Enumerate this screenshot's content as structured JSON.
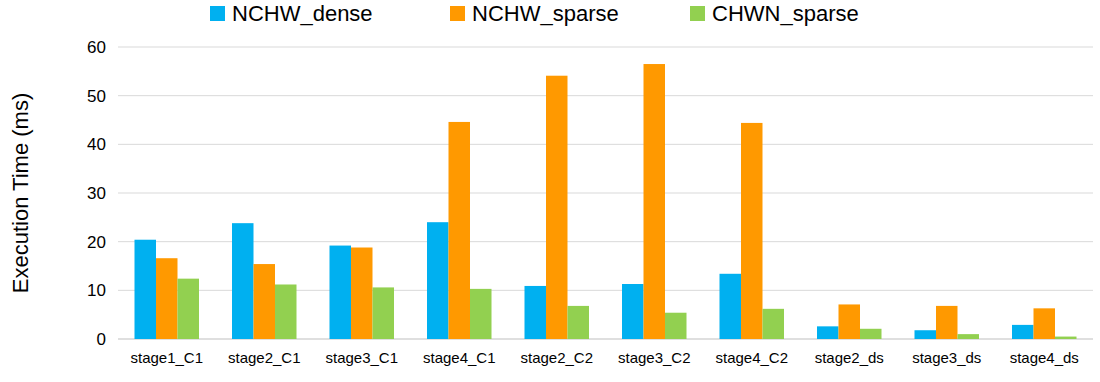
{
  "chart_data": {
    "type": "bar",
    "y_label": "Execution Time (ms)",
    "categories": [
      "stage1_C1",
      "stage2_C1",
      "stage3_C1",
      "stage4_C1",
      "stage2_C2",
      "stage3_C2",
      "stage4_C2",
      "stage2_ds",
      "stage3_ds",
      "stage4_ds"
    ],
    "series": [
      {
        "name": "NCHW_dense",
        "color": "#00b0f0",
        "values": [
          20.4,
          23.8,
          19.2,
          24.0,
          10.9,
          11.3,
          13.4,
          2.6,
          1.8,
          2.9
        ]
      },
      {
        "name": "NCHW_sparse",
        "color": "#ff9900",
        "values": [
          16.6,
          15.4,
          18.8,
          44.6,
          54.1,
          56.5,
          44.4,
          7.1,
          6.8,
          6.3
        ]
      },
      {
        "name": "CHWN_sparse",
        "color": "#92d050",
        "values": [
          12.4,
          11.2,
          10.6,
          10.3,
          6.8,
          5.4,
          6.2,
          2.1,
          1.0,
          0.5
        ]
      }
    ],
    "ylim": [
      0,
      60
    ],
    "yticks": [
      0,
      10,
      20,
      30,
      40,
      50,
      60
    ],
    "grid": true,
    "legend": "top"
  }
}
